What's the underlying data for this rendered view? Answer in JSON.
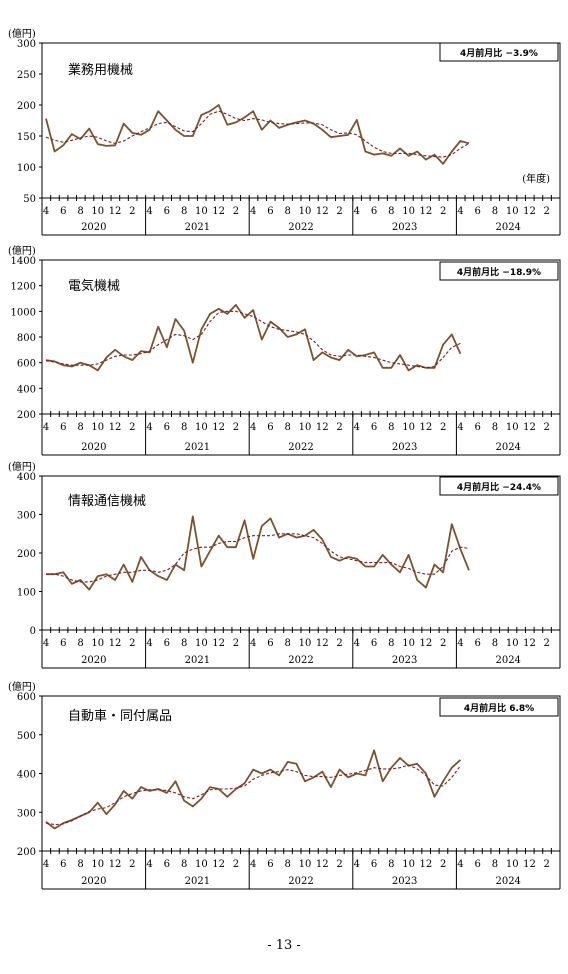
{
  "page_number": "- 13 -",
  "unit": "(億円)",
  "axis_note": "(年度)",
  "month_ticks": [
    "4",
    "6",
    "8",
    "10",
    "12",
    "2"
  ],
  "fy_labels": [
    "2020",
    "2021",
    "2022",
    "2023",
    "2024"
  ],
  "colors": {
    "actual": "#7a5230",
    "trend": "#7a1f1f",
    "axis": "#000000"
  },
  "chart_data": [
    {
      "type": "line",
      "title": "業務用機械",
      "change_label": "4月前月比  −3.9%",
      "ylim": [
        50,
        300
      ],
      "yticks": [
        50,
        100,
        150,
        200,
        250,
        300
      ],
      "x_start": "2020-04",
      "x_end": "2025-03",
      "show_fy_note": true,
      "series": [
        {
          "values": [
            178,
            125,
            135,
            153,
            145,
            162,
            137,
            134,
            135,
            170,
            155,
            152,
            160,
            190,
            175,
            160,
            150,
            150,
            184,
            190,
            200,
            168,
            172,
            180,
            190,
            160,
            175,
            163,
            168,
            172,
            175,
            170,
            160,
            148,
            150,
            152,
            176,
            125,
            120,
            122,
            118,
            130,
            118,
            125,
            112,
            120,
            105,
            125,
            142,
            138
          ]
        },
        {
          "values": [
            148,
            143,
            140,
            143,
            147,
            150,
            148,
            142,
            138,
            142,
            150,
            157,
            163,
            170,
            172,
            165,
            158,
            157,
            170,
            185,
            190,
            185,
            178,
            175,
            178,
            176,
            172,
            170,
            169,
            170,
            171,
            171,
            168,
            160,
            154,
            155,
            152,
            142,
            132,
            125,
            122,
            122,
            122,
            120,
            118,
            117,
            116,
            120,
            130,
            138
          ]
        }
      ]
    },
    {
      "type": "line",
      "title": "電気機械",
      "change_label": "4月前月比  −18.9%",
      "ylim": [
        200,
        1400
      ],
      "yticks": [
        200,
        400,
        600,
        800,
        1000,
        1200,
        1400
      ],
      "x_start": "2020-04",
      "x_end": "2025-03",
      "show_fy_note": false,
      "series": [
        {
          "values": [
            620,
            610,
            580,
            570,
            600,
            580,
            540,
            640,
            700,
            650,
            620,
            690,
            680,
            880,
            720,
            940,
            850,
            600,
            860,
            980,
            1020,
            980,
            1050,
            950,
            1010,
            780,
            920,
            870,
            800,
            820,
            860,
            620,
            680,
            640,
            620,
            700,
            650,
            660,
            680,
            560,
            560,
            660,
            540,
            580,
            560,
            560,
            740,
            820,
            670
          ]
        },
        {
          "values": [
            615,
            605,
            590,
            580,
            580,
            580,
            590,
            620,
            650,
            660,
            660,
            670,
            690,
            740,
            780,
            820,
            810,
            780,
            820,
            920,
            990,
            1000,
            1000,
            980,
            960,
            920,
            880,
            860,
            850,
            840,
            820,
            770,
            700,
            660,
            650,
            660,
            660,
            650,
            640,
            620,
            600,
            590,
            580,
            570,
            560,
            570,
            640,
            720,
            750
          ]
        }
      ]
    },
    {
      "type": "line",
      "title": "情報通信機械",
      "change_label": "4月前月比  −24.4%",
      "ylim": [
        0,
        400
      ],
      "yticks": [
        0,
        100,
        200,
        300,
        400
      ],
      "x_start": "2020-04",
      "x_end": "2025-03",
      "show_fy_note": false,
      "series": [
        {
          "values": [
            145,
            145,
            150,
            120,
            130,
            105,
            140,
            145,
            130,
            170,
            125,
            190,
            155,
            140,
            130,
            170,
            155,
            295,
            165,
            205,
            245,
            215,
            215,
            285,
            185,
            270,
            290,
            240,
            250,
            240,
            245,
            260,
            235,
            190,
            180,
            190,
            185,
            165,
            165,
            195,
            170,
            150,
            195,
            130,
            110,
            170,
            150,
            275,
            210,
            155
          ]
        },
        {
          "values": [
            145,
            145,
            140,
            130,
            125,
            125,
            130,
            140,
            145,
            150,
            150,
            155,
            155,
            150,
            155,
            170,
            200,
            210,
            215,
            215,
            225,
            230,
            230,
            240,
            245,
            245,
            245,
            250,
            250,
            250,
            245,
            240,
            225,
            205,
            190,
            185,
            180,
            175,
            175,
            175,
            175,
            165,
            160,
            150,
            145,
            145,
            165,
            205,
            215,
            212
          ]
        }
      ]
    },
    {
      "type": "line",
      "title": "自動車・同付属品",
      "change_label": "4月前月比  6.8%",
      "ylim": [
        200,
        600
      ],
      "yticks": [
        200,
        300,
        400,
        500,
        600
      ],
      "x_start": "2020-04",
      "x_end": "2025-03",
      "show_fy_note": false,
      "series": [
        {
          "values": [
            275,
            258,
            272,
            280,
            290,
            300,
            325,
            295,
            320,
            355,
            335,
            365,
            355,
            360,
            350,
            380,
            330,
            315,
            335,
            365,
            360,
            340,
            360,
            375,
            410,
            400,
            410,
            395,
            430,
            425,
            380,
            390,
            405,
            365,
            410,
            390,
            400,
            395,
            460,
            380,
            415,
            440,
            420,
            425,
            400,
            340,
            380,
            415,
            435
          ]
        },
        {
          "values": [
            272,
            268,
            270,
            278,
            290,
            302,
            308,
            312,
            325,
            340,
            348,
            355,
            358,
            358,
            356,
            350,
            340,
            335,
            345,
            358,
            360,
            360,
            362,
            368,
            385,
            395,
            402,
            405,
            410,
            405,
            395,
            392,
            392,
            390,
            395,
            398,
            402,
            408,
            415,
            412,
            412,
            415,
            422,
            412,
            395,
            370,
            368,
            390,
            420
          ]
        }
      ]
    }
  ]
}
